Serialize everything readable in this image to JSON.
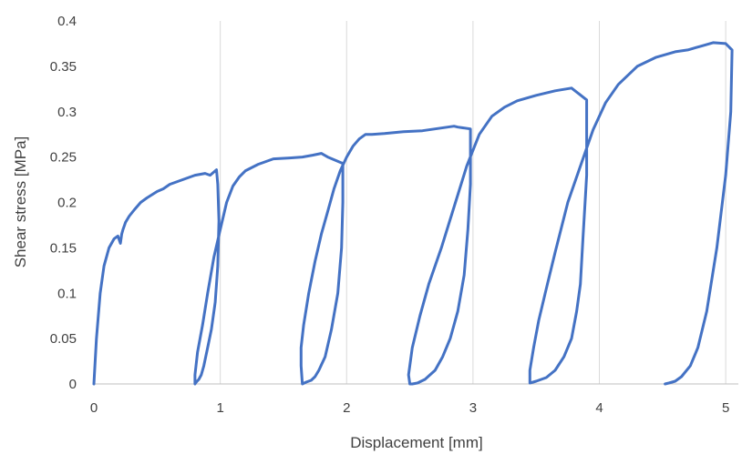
{
  "chart_data": {
    "type": "line",
    "title": "",
    "xlabel": "Displacement [mm]",
    "ylabel": "Shear stress [MPa]",
    "xlim": [
      0,
      5.1
    ],
    "ylim": [
      0,
      0.4
    ],
    "x_ticks": [
      0,
      1,
      2,
      3,
      4,
      5
    ],
    "x_tick_labels": [
      "0",
      "1",
      "2",
      "3",
      "4",
      "5"
    ],
    "y_ticks": [
      0,
      0.05,
      0.1,
      0.15,
      0.2,
      0.25,
      0.3,
      0.35,
      0.4
    ],
    "y_tick_labels": [
      "0",
      "0.05",
      "0.1",
      "0.15",
      "0.2",
      "0.25",
      "0.3",
      "0.35",
      "0.4"
    ],
    "grid": "vertical",
    "legend": "none",
    "series": [
      {
        "color": "#4472C4",
        "x": [
          0,
          0.02,
          0.05,
          0.08,
          0.12,
          0.16,
          0.19,
          0.21,
          0.22,
          0.23,
          0.25,
          0.28,
          0.32,
          0.37,
          0.42,
          0.5,
          0.55,
          0.6,
          0.7,
          0.8,
          0.88,
          0.92,
          0.97,
          0.98,
          0.99,
          0.98,
          0.96,
          0.93,
          0.9,
          0.87,
          0.85,
          0.83,
          0.81,
          0.8,
          0.8,
          0.82,
          0.86,
          0.9,
          0.95,
          1.0,
          1.05,
          1.1,
          1.15,
          1.2,
          1.3,
          1.42,
          1.55,
          1.65,
          1.73,
          1.8,
          1.85,
          1.97,
          1.97,
          1.96,
          1.93,
          1.88,
          1.83,
          1.78,
          1.75,
          1.72,
          1.68,
          1.65,
          1.64,
          1.64,
          1.66,
          1.7,
          1.75,
          1.8,
          1.85,
          1.9,
          1.95,
          2.0,
          2.05,
          2.1,
          2.15,
          2.2,
          2.3,
          2.45,
          2.6,
          2.75,
          2.85,
          2.88,
          2.98,
          2.98,
          2.96,
          2.93,
          2.88,
          2.82,
          2.76,
          2.7,
          2.62,
          2.56,
          2.52,
          2.5,
          2.49,
          2.52,
          2.58,
          2.65,
          2.75,
          2.85,
          2.95,
          3.05,
          3.15,
          3.25,
          3.35,
          3.5,
          3.65,
          3.78,
          3.9,
          3.9,
          3.87,
          3.85,
          3.82,
          3.78,
          3.72,
          3.65,
          3.58,
          3.5,
          3.45,
          3.45,
          3.48,
          3.52,
          3.58,
          3.65,
          3.75,
          3.85,
          3.95,
          4.05,
          4.15,
          4.3,
          4.45,
          4.6,
          4.7,
          4.8,
          4.9,
          5.0,
          5.05,
          5.04,
          5.0,
          4.93,
          4.85,
          4.78,
          4.72,
          4.65,
          4.6,
          4.55,
          4.52
        ],
        "y": [
          0,
          0.05,
          0.1,
          0.13,
          0.15,
          0.16,
          0.163,
          0.155,
          0.165,
          0.17,
          0.178,
          0.185,
          0.192,
          0.2,
          0.205,
          0.212,
          0.215,
          0.22,
          0.225,
          0.23,
          0.232,
          0.23,
          0.236,
          0.22,
          0.18,
          0.13,
          0.09,
          0.06,
          0.04,
          0.02,
          0.01,
          0.005,
          0.002,
          0,
          0.01,
          0.035,
          0.065,
          0.1,
          0.14,
          0.17,
          0.2,
          0.218,
          0.228,
          0.235,
          0.242,
          0.248,
          0.249,
          0.25,
          0.252,
          0.254,
          0.25,
          0.243,
          0.2,
          0.15,
          0.1,
          0.06,
          0.03,
          0.015,
          0.008,
          0.004,
          0.002,
          0,
          0.02,
          0.04,
          0.065,
          0.1,
          0.135,
          0.165,
          0.19,
          0.215,
          0.235,
          0.25,
          0.262,
          0.27,
          0.275,
          0.275,
          0.276,
          0.278,
          0.279,
          0.282,
          0.284,
          0.283,
          0.281,
          0.22,
          0.17,
          0.12,
          0.08,
          0.05,
          0.03,
          0.015,
          0.005,
          0.001,
          0,
          0,
          0.01,
          0.04,
          0.075,
          0.11,
          0.15,
          0.195,
          0.24,
          0.275,
          0.295,
          0.305,
          0.312,
          0.318,
          0.323,
          0.326,
          0.313,
          0.23,
          0.16,
          0.11,
          0.08,
          0.05,
          0.03,
          0.015,
          0.007,
          0.003,
          0.001,
          0.015,
          0.04,
          0.07,
          0.105,
          0.145,
          0.2,
          0.24,
          0.28,
          0.31,
          0.33,
          0.35,
          0.36,
          0.366,
          0.368,
          0.372,
          0.376,
          0.375,
          0.368,
          0.3,
          0.23,
          0.15,
          0.08,
          0.04,
          0.02,
          0.008,
          0.003,
          0.001,
          0
        ]
      }
    ]
  }
}
